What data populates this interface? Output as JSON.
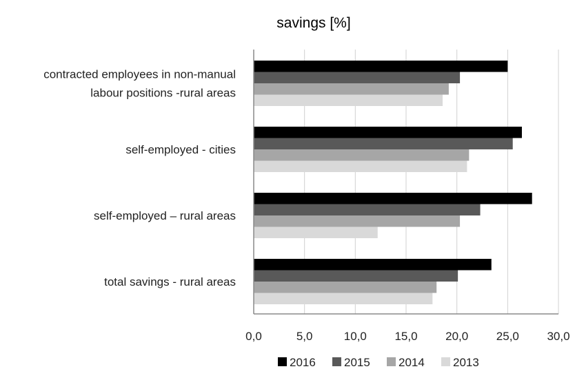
{
  "chart_data": {
    "type": "bar",
    "orientation": "horizontal",
    "title": "savings [%]",
    "categories": [
      [
        "contracted employees in non-manual",
        "labour positions -rural areas"
      ],
      [
        "self-employed - cities"
      ],
      [
        "self-employed – rural areas"
      ],
      [
        "total savings  - rural areas"
      ]
    ],
    "series": [
      {
        "name": "2016",
        "color": "#000000",
        "values": [
          25.0,
          26.4,
          27.4,
          23.4
        ]
      },
      {
        "name": "2015",
        "color": "#595959",
        "values": [
          20.3,
          25.5,
          22.3,
          20.1
        ]
      },
      {
        "name": "2014",
        "color": "#a6a6a6",
        "values": [
          19.2,
          21.2,
          20.3,
          18.0
        ]
      },
      {
        "name": "2013",
        "color": "#d9d9d9",
        "values": [
          18.6,
          21.0,
          12.2,
          17.6
        ]
      }
    ],
    "xlim": [
      0,
      30
    ],
    "xticks": [
      0,
      5,
      10,
      15,
      20,
      25,
      30
    ],
    "xtick_labels": [
      "0,0",
      "5,0",
      "10,0",
      "15,0",
      "20,0",
      "25,0",
      "30,0"
    ],
    "grid": true,
    "legend_position": "bottom"
  }
}
